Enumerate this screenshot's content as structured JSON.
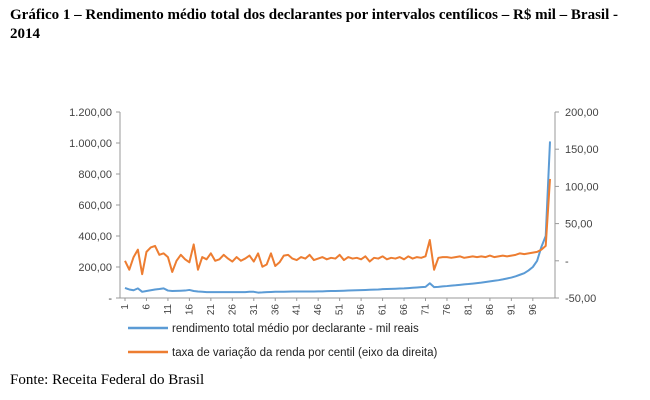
{
  "title": "Gráfico 1 – Rendimento médio total dos declarantes por intervalos centílicos – R$ mil – Brasil - 2014",
  "source": "Fonte: Receita Federal do Brasil",
  "colors": {
    "series1": "#5b9bd5",
    "series2": "#ed7d31",
    "axis": "#999999"
  },
  "chart_data": {
    "type": "line",
    "title": "Gráfico 1 – Rendimento médio total dos declarantes por intervalos centílicos – R$ mil – Brasil - 2014",
    "xlabel": "",
    "ylabel": "",
    "x": [
      1,
      2,
      3,
      4,
      5,
      6,
      7,
      8,
      9,
      10,
      11,
      12,
      13,
      14,
      15,
      16,
      17,
      18,
      19,
      20,
      21,
      22,
      23,
      24,
      25,
      26,
      27,
      28,
      29,
      30,
      31,
      32,
      33,
      34,
      35,
      36,
      37,
      38,
      39,
      40,
      41,
      42,
      43,
      44,
      45,
      46,
      47,
      48,
      49,
      50,
      51,
      52,
      53,
      54,
      55,
      56,
      57,
      58,
      59,
      60,
      61,
      62,
      63,
      64,
      65,
      66,
      67,
      68,
      69,
      70,
      71,
      72,
      73,
      74,
      75,
      76,
      77,
      78,
      79,
      80,
      81,
      82,
      83,
      84,
      85,
      86,
      87,
      88,
      89,
      90,
      91,
      92,
      93,
      94,
      95,
      96,
      97,
      98,
      99,
      100
    ],
    "x_tick_labels": [
      "1",
      "6",
      "11",
      "16",
      "21",
      "26",
      "31",
      "36",
      "41",
      "46",
      "51",
      "56",
      "61",
      "66",
      "71",
      "76",
      "81",
      "86",
      "91",
      "96"
    ],
    "y_left": {
      "ylim": [
        0,
        1200
      ],
      "ticks": [
        0,
        200,
        400,
        600,
        800,
        1000,
        1200
      ],
      "tick_labels": [
        "-",
        "200,00",
        "400,00",
        "600,00",
        "800,00",
        "1.000,00",
        "1.200,00"
      ]
    },
    "y_right": {
      "ylim": [
        -50,
        200
      ],
      "ticks": [
        -50,
        0,
        50,
        100,
        150,
        200
      ],
      "tick_labels": [
        "-50,00",
        "-",
        "50,00",
        "100,00",
        "150,00",
        "200,00"
      ]
    },
    "series": [
      {
        "name": "rendimento total médio por declarante - mil reais",
        "axis": "left",
        "values": [
          65,
          55,
          50,
          62,
          40,
          45,
          50,
          55,
          58,
          62,
          48,
          45,
          46,
          47,
          48,
          52,
          45,
          42,
          40,
          38,
          38,
          38,
          38,
          38,
          38,
          38,
          38,
          38,
          38,
          40,
          40,
          35,
          36,
          38,
          39,
          40,
          40,
          40,
          41,
          42,
          42,
          42,
          42,
          42,
          42,
          43,
          43,
          44,
          45,
          45,
          46,
          47,
          48,
          49,
          50,
          51,
          52,
          53,
          54,
          55,
          57,
          58,
          59,
          60,
          61,
          62,
          64,
          66,
          68,
          70,
          72,
          95,
          70,
          72,
          75,
          77,
          80,
          82,
          85,
          88,
          90,
          93,
          96,
          99,
          103,
          107,
          111,
          115,
          120,
          126,
          132,
          140,
          150,
          160,
          178,
          200,
          240,
          330,
          400,
          1010
        ]
      },
      {
        "name": "taxa de variação da renda por centil (eixo da direita)",
        "axis": "right",
        "values": [
          0,
          -12,
          5,
          15,
          -18,
          12,
          18,
          20,
          8,
          10,
          5,
          -15,
          0,
          8,
          2,
          -2,
          22,
          -12,
          5,
          2,
          10,
          0,
          2,
          8,
          3,
          -1,
          5,
          0,
          3,
          7,
          -1,
          10,
          -8,
          -5,
          10,
          -7,
          -2,
          7,
          8,
          3,
          1,
          5,
          3,
          8,
          1,
          3,
          5,
          2,
          4,
          3,
          8,
          1,
          5,
          3,
          4,
          2,
          6,
          -1,
          4,
          3,
          6,
          2,
          4,
          3,
          5,
          2,
          6,
          3,
          5,
          4,
          6,
          28,
          -12,
          4,
          5,
          5,
          4,
          5,
          6,
          4,
          5,
          6,
          5,
          6,
          5,
          7,
          5,
          6,
          7,
          6,
          7,
          8,
          10,
          9,
          10,
          11,
          12,
          15,
          20,
          110
        ]
      }
    ],
    "legend": [
      "rendimento total médio por declarante - mil reais",
      "taxa de variação da renda por centil (eixo da direita)"
    ],
    "legend_position": "bottom",
    "grid": false
  }
}
